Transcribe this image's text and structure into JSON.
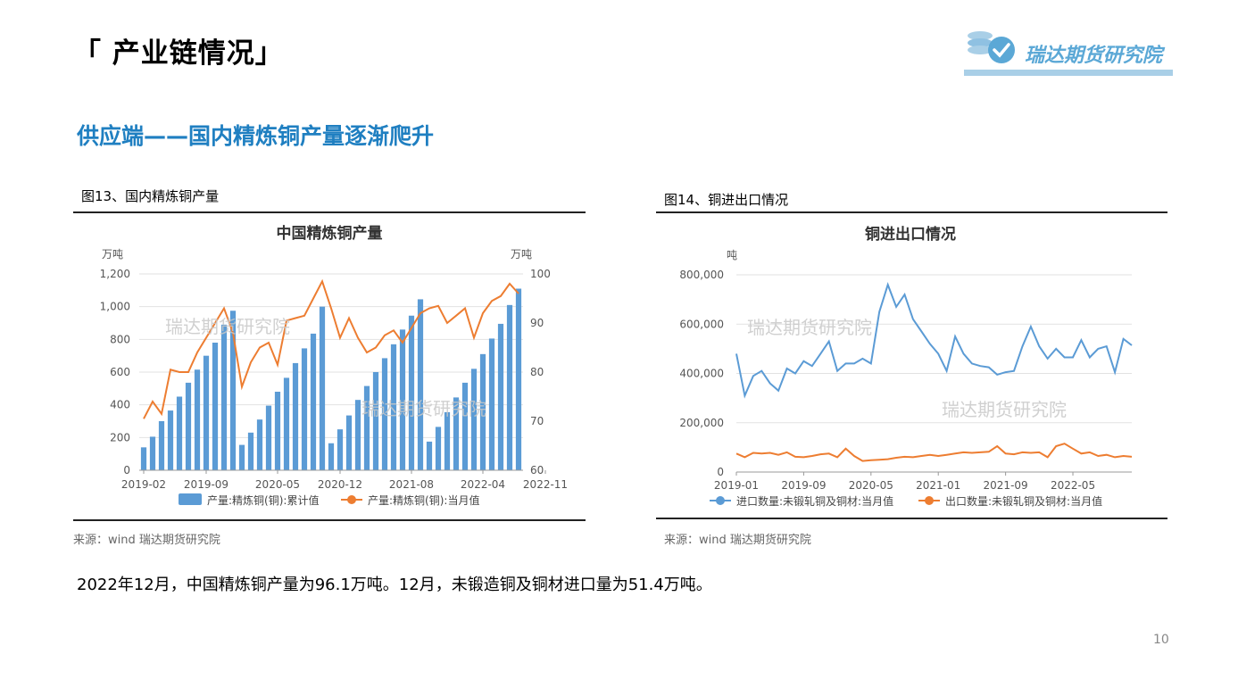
{
  "header": {
    "title": "「 产业链情况」",
    "logo_text": "瑞达期货研究院"
  },
  "subtitle": "供应端——国内精炼铜产量逐渐爬升",
  "figures": [
    {
      "caption": "图13、国内精炼铜产量",
      "source": "来源：wind   瑞达期货研究院"
    },
    {
      "caption": "图14、铜进出口情况",
      "source": "来源：wind   瑞达期货研究院"
    }
  ],
  "summary": "2022年12月，中国精炼铜产量为96.1万吨。12月，未锻造铜及铜材进口量为51.4万吨。",
  "page_number": "10",
  "watermark": "瑞达期货研究院",
  "chart_data": [
    {
      "type": "bar+line",
      "title": "中国精炼铜产量",
      "y_left_unit": "万吨",
      "y_right_unit": "万吨",
      "y_left_range": [
        0,
        1200
      ],
      "y_left_ticks": [
        "0",
        "200",
        "400",
        "600",
        "800",
        "1,000",
        "1,200"
      ],
      "y_right_range": [
        60,
        100
      ],
      "y_right_ticks": [
        "60",
        "70",
        "80",
        "90",
        "100"
      ],
      "x_tick_labels": [
        "2019-02",
        "2019-09",
        "2020-05",
        "2020-12",
        "2021-08",
        "2022-04",
        "2022-11"
      ],
      "x_tick_index": [
        0,
        7,
        15,
        22,
        30,
        38,
        45
      ],
      "grid": true,
      "legend_position": "bottom",
      "series": [
        {
          "name": "产量:精炼铜(铜):累计值",
          "kind": "bar",
          "axis": "left",
          "color": "#5b9bd5",
          "values": [
            140,
            205,
            300,
            365,
            450,
            535,
            615,
            700,
            780,
            890,
            975,
            155,
            230,
            310,
            395,
            480,
            565,
            655,
            745,
            835,
            1000,
            165,
            250,
            335,
            430,
            515,
            600,
            685,
            770,
            860,
            945,
            1045,
            175,
            265,
            355,
            445,
            535,
            620,
            710,
            805,
            895,
            1010,
            1110
          ]
        },
        {
          "name": "产量:精炼铜(铜):当月值",
          "kind": "line",
          "axis": "right",
          "color": "#ed7d31",
          "values": [
            70.5,
            74,
            71.5,
            80.5,
            80,
            80,
            84,
            87,
            90,
            93,
            88,
            77,
            82,
            85,
            86,
            81.5,
            90.5,
            91,
            91.5,
            95,
            98.5,
            93,
            87,
            91,
            87,
            84,
            85,
            87.5,
            88.5,
            86,
            89,
            92,
            93,
            93.5,
            90,
            91.5,
            93,
            87,
            92,
            94.5,
            95.5,
            98,
            96
          ]
        }
      ]
    },
    {
      "type": "line",
      "title": "铜进出口情况",
      "y_unit": "吨",
      "y_range": [
        0,
        800000
      ],
      "y_ticks": [
        "0",
        "200,000",
        "400,000",
        "600,000",
        "800,000"
      ],
      "x_tick_labels": [
        "2019-01",
        "2019-09",
        "2020-05",
        "2021-01",
        "2021-09",
        "2022-05"
      ],
      "x_tick_index": [
        0,
        8,
        16,
        24,
        32,
        40
      ],
      "grid": true,
      "legend_position": "bottom",
      "series": [
        {
          "name": "进口数量:未锻轧铜及铜材:当月值",
          "color": "#5b9bd5",
          "values": [
            480000,
            310000,
            390000,
            410000,
            360000,
            330000,
            420000,
            400000,
            450000,
            430000,
            480000,
            530000,
            410000,
            440000,
            440000,
            460000,
            440000,
            650000,
            760000,
            670000,
            720000,
            620000,
            570000,
            520000,
            480000,
            410000,
            550000,
            480000,
            440000,
            430000,
            425000,
            395000,
            405000,
            410000,
            510000,
            590000,
            510000,
            460000,
            500000,
            465000,
            465000,
            535000,
            465000,
            500000,
            510000,
            405000,
            540000,
            514000
          ]
        },
        {
          "name": "出口数量:未锻轧铜及铜材:当月值",
          "color": "#ed7d31",
          "values": [
            75000,
            60000,
            78000,
            75000,
            78000,
            70000,
            80000,
            62000,
            60000,
            65000,
            72000,
            75000,
            60000,
            95000,
            65000,
            45000,
            48000,
            50000,
            52000,
            58000,
            62000,
            60000,
            65000,
            70000,
            65000,
            70000,
            75000,
            80000,
            78000,
            80000,
            82000,
            105000,
            75000,
            72000,
            80000,
            78000,
            80000,
            60000,
            105000,
            115000,
            95000,
            75000,
            80000,
            65000,
            70000,
            60000,
            65000,
            62000
          ]
        }
      ]
    }
  ]
}
